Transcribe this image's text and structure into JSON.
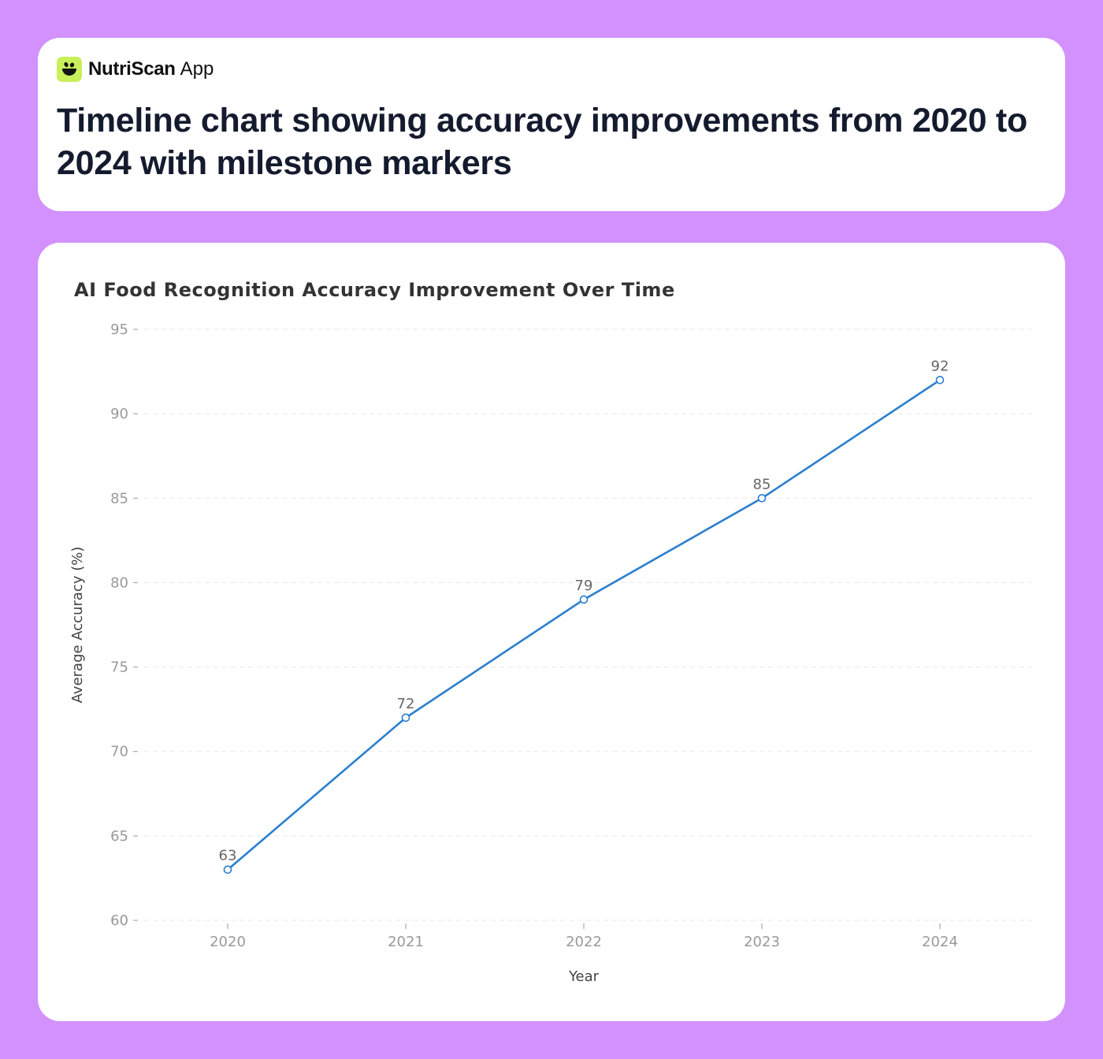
{
  "header": {
    "brand_name": "NutriScan",
    "brand_suffix": "App",
    "logo_icon": "leaf-bowl-icon",
    "title": "Timeline chart showing accuracy improvements from 2020 to 2024 with milestone markers"
  },
  "colors": {
    "background": "#d291fd",
    "card": "#ffffff",
    "logo_bg": "#c9ef5b",
    "line": "#2b7fce",
    "tick_text": "#999999",
    "label_text": "#666666"
  },
  "chart_data": {
    "type": "line",
    "title": "AI Food Recognition Accuracy Improvement Over Time",
    "xlabel": "Year",
    "ylabel": "Average Accuracy (%)",
    "categories": [
      "2020",
      "2021",
      "2022",
      "2023",
      "2024"
    ],
    "series": [
      {
        "name": "Average Accuracy (%)",
        "values": [
          63,
          72,
          79,
          85,
          92
        ]
      }
    ],
    "data_labels": [
      "63",
      "72",
      "79",
      "85",
      "92"
    ],
    "yticks": [
      "60",
      "65",
      "70",
      "75",
      "80",
      "85",
      "90",
      "95"
    ],
    "ylim": [
      60,
      95
    ],
    "grid": true,
    "legend": "none"
  }
}
